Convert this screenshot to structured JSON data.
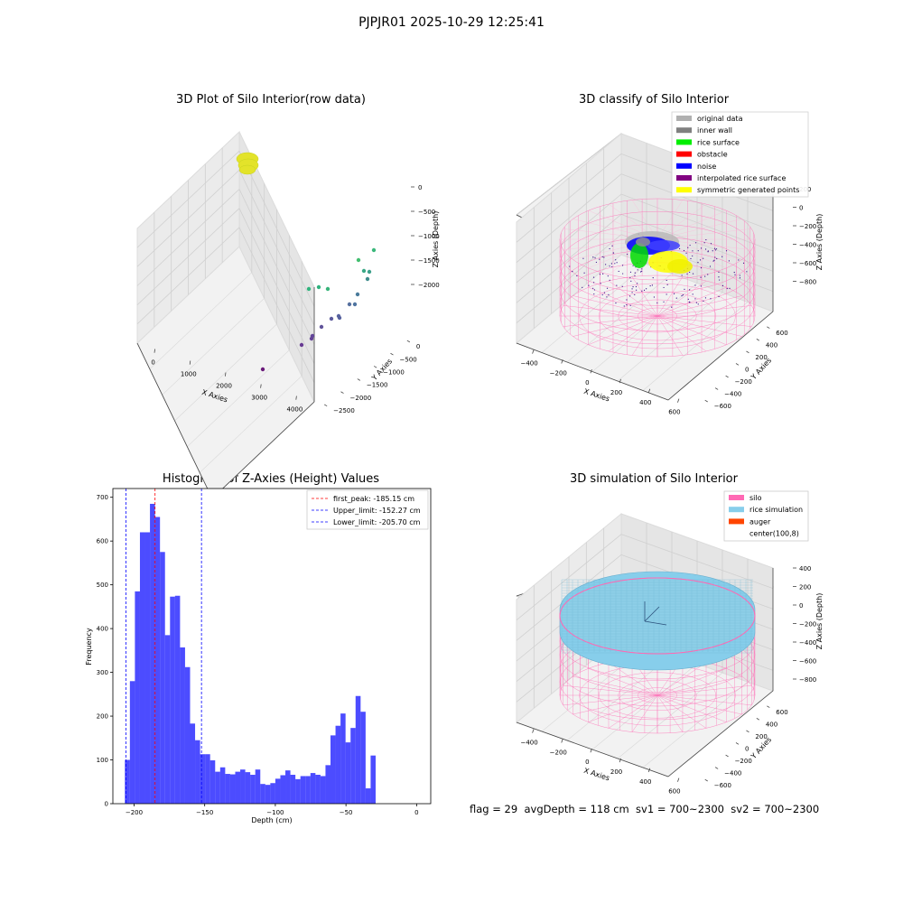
{
  "suptitle": "PJPJR01 2025-10-29 12:25:41",
  "status_text": "flag = 29  avgDepth = 118 cm  sv1 = 700~2300  sv2 = 700~2300",
  "chart_data": [
    {
      "type": "scatter",
      "title": "3D Plot of Silo Interior(row data)",
      "xlabel": "X Axies",
      "ylabel": "Y Axies",
      "zlabel": "Z Axies (Depth)",
      "x_ticks": [
        "0",
        "1000",
        "2000",
        "3000",
        "4000"
      ],
      "y_ticks": [
        "0",
        "−500",
        "−1000",
        "−1500",
        "−2000",
        "−2500"
      ],
      "z_ticks": [
        "0",
        "−500",
        "−1000",
        "−1500",
        "−2000"
      ],
      "colormap": "viridis"
    },
    {
      "type": "scatter",
      "title": "3D classify of Silo Interior",
      "xlabel": "X Axies",
      "ylabel": "Y Axies",
      "zlabel": "Z Axies (Depth)",
      "x_ticks": [
        "−400",
        "−200",
        "0",
        "200",
        "400",
        "600"
      ],
      "y_ticks": [
        "600",
        "400",
        "200",
        "0",
        "−200",
        "−400",
        "−600"
      ],
      "z_ticks": [
        "200",
        "0",
        "−200",
        "−400",
        "−600",
        "−800"
      ],
      "legend": [
        {
          "label": "original data",
          "color": "#b0b0b0"
        },
        {
          "label": "inner wall",
          "color": "#808080"
        },
        {
          "label": "rice surface",
          "color": "#00ee00"
        },
        {
          "label": "obstacle",
          "color": "#ff0000"
        },
        {
          "label": "noise",
          "color": "#0000ff"
        },
        {
          "label": "interpolated rice surface",
          "color": "#800080"
        },
        {
          "label": "symmetric generated points",
          "color": "#ffff00"
        }
      ],
      "legend_position": "upper right"
    },
    {
      "type": "bar",
      "title": "Histogram of Z-Axies (Height) Values",
      "xlabel": "Depth (cm)",
      "ylabel": "Frequency",
      "xlim": [
        -215,
        10
      ],
      "ylim": [
        0,
        720
      ],
      "x_ticks": [
        -200,
        -150,
        -100,
        -50,
        0
      ],
      "x_tick_labels": [
        "−200",
        "−150",
        "−100",
        "−50",
        "0"
      ],
      "y_ticks": [
        0,
        100,
        200,
        300,
        400,
        500,
        600,
        700
      ],
      "bin_start": -206.5,
      "bin_width": 3.55,
      "values": [
        100,
        280,
        485,
        620,
        620,
        685,
        655,
        575,
        385,
        473,
        475,
        357,
        312,
        183,
        145,
        113,
        113,
        99,
        73,
        83,
        68,
        67,
        73,
        78,
        72,
        66,
        78,
        45,
        43,
        47,
        57,
        65,
        76,
        66,
        56,
        63,
        63,
        70,
        66,
        63,
        88,
        156,
        178,
        206,
        140,
        173,
        246,
        210,
        35,
        110
      ],
      "bar_color": "#0000ff",
      "reference_lines": [
        {
          "label": "first_peak: -185.15 cm",
          "x": -185.15,
          "color": "#ff0000"
        },
        {
          "label": "Upper_limit: -152.27 cm",
          "x": -152.27,
          "color": "#0000ff"
        },
        {
          "label": "Lower_limit: -205.70 cm",
          "x": -205.7,
          "color": "#0000ff"
        }
      ],
      "legend_position": "upper right"
    },
    {
      "type": "scatter",
      "title": "3D simulation of Silo Interior",
      "xlabel": "X Axies",
      "ylabel": "Y Axies",
      "zlabel": "Z Axies (Depth)",
      "x_ticks": [
        "−400",
        "−200",
        "0",
        "200",
        "400",
        "600"
      ],
      "y_ticks": [
        "600",
        "400",
        "200",
        "0",
        "−200",
        "−400",
        "−600"
      ],
      "z_ticks": [
        "400",
        "200",
        "0",
        "−200",
        "−400",
        "−600",
        "−800"
      ],
      "legend": [
        {
          "label": "silo",
          "color": "#ff69b4"
        },
        {
          "label": "rice simulation",
          "color": "#87ceeb"
        },
        {
          "label": "auger",
          "color": "#ff4500"
        },
        {
          "label": "center(100,8)",
          "color": "#ffffff"
        }
      ],
      "legend_position": "upper right"
    }
  ]
}
